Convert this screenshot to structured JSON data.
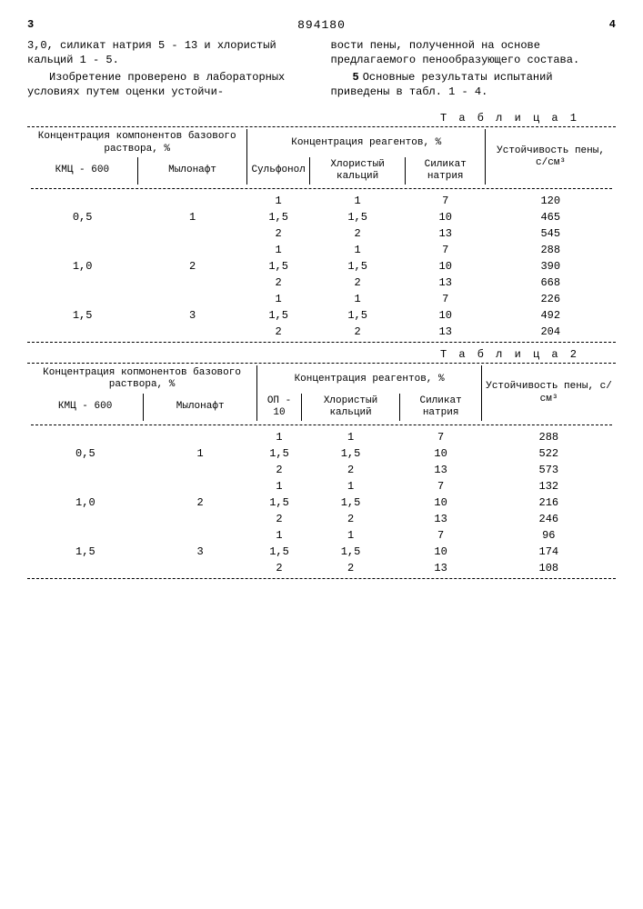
{
  "doc_number": "894180",
  "page_left_num": "3",
  "page_right_num": "4",
  "text_left_p1": "3,0, силикат натрия 5 - 13 и хлористый кальций 1 - 5.",
  "text_left_p2": "Изобретение проверено в лабораторных условиях путем оценки устойчи-",
  "text_right_p1": "вости пены, полученной на основе предлагаемого пенообразующего состава.",
  "text_right_p2": "Основные результаты испытаний приведены в табл. 1 - 4.",
  "side_marker": "5",
  "table1": {
    "label": "Т а б л и ц а 1",
    "headers": {
      "group1": "Концентрация компонентов базового раствора, %",
      "group2": "Концентрация реагентов, %",
      "group3": "Устойчивость пены, с/см³",
      "col1": "КМЦ - 600",
      "col2": "Мылонафт",
      "col3": "Сульфонол",
      "col4": "Хлористый кальций",
      "col5": "Силикат натрия"
    },
    "rows": [
      {
        "c1": "",
        "c2": "",
        "c3": "1",
        "c4": "1",
        "c5": "7",
        "c6": "120"
      },
      {
        "c1": "0,5",
        "c2": "1",
        "c3": "1,5",
        "c4": "1,5",
        "c5": "10",
        "c6": "465"
      },
      {
        "c1": "",
        "c2": "",
        "c3": "2",
        "c4": "2",
        "c5": "13",
        "c6": "545"
      },
      {
        "c1": "",
        "c2": "",
        "c3": "1",
        "c4": "1",
        "c5": "7",
        "c6": "288"
      },
      {
        "c1": "1,0",
        "c2": "2",
        "c3": "1,5",
        "c4": "1,5",
        "c5": "10",
        "c6": "390"
      },
      {
        "c1": "",
        "c2": "",
        "c3": "2",
        "c4": "2",
        "c5": "13",
        "c6": "668"
      },
      {
        "c1": "",
        "c2": "",
        "c3": "1",
        "c4": "1",
        "c5": "7",
        "c6": "226"
      },
      {
        "c1": "1,5",
        "c2": "3",
        "c3": "1,5",
        "c4": "1,5",
        "c5": "10",
        "c6": "492"
      },
      {
        "c1": "",
        "c2": "",
        "c3": "2",
        "c4": "2",
        "c5": "13",
        "c6": "204"
      }
    ]
  },
  "table2": {
    "label": "Т а б л и ц а 2",
    "headers": {
      "group1": "Концентрация копмонентов базового раствора, %",
      "group2": "Концентрация реагентов, %",
      "group3": "Устойчивость пены, с/см³",
      "col1": "КМЦ - 600",
      "col2": "Мылонафт",
      "col3": "ОП - 10",
      "col4": "Хлористый кальций",
      "col5": "Силикат натрия"
    },
    "rows": [
      {
        "c1": "",
        "c2": "",
        "c3": "1",
        "c4": "1",
        "c5": "7",
        "c6": "288"
      },
      {
        "c1": "0,5",
        "c2": "1",
        "c3": "1,5",
        "c4": "1,5",
        "c5": "10",
        "c6": "522"
      },
      {
        "c1": "",
        "c2": "",
        "c3": "2",
        "c4": "2",
        "c5": "13",
        "c6": "573"
      },
      {
        "c1": "",
        "c2": "",
        "c3": "1",
        "c4": "1",
        "c5": "7",
        "c6": "132"
      },
      {
        "c1": "1,0",
        "c2": "2",
        "c3": "1,5",
        "c4": "1,5",
        "c5": "10",
        "c6": "216"
      },
      {
        "c1": "",
        "c2": "",
        "c3": "2",
        "c4": "2",
        "c5": "13",
        "c6": "246"
      },
      {
        "c1": "",
        "c2": "",
        "c3": "1",
        "c4": "1",
        "c5": "7",
        "c6": "96"
      },
      {
        "c1": "1,5",
        "c2": "3",
        "c3": "1,5",
        "c4": "1,5",
        "c5": "10",
        "c6": "174"
      },
      {
        "c1": "",
        "c2": "",
        "c3": "2",
        "c4": "2",
        "c5": "13",
        "c6": "108"
      }
    ]
  }
}
